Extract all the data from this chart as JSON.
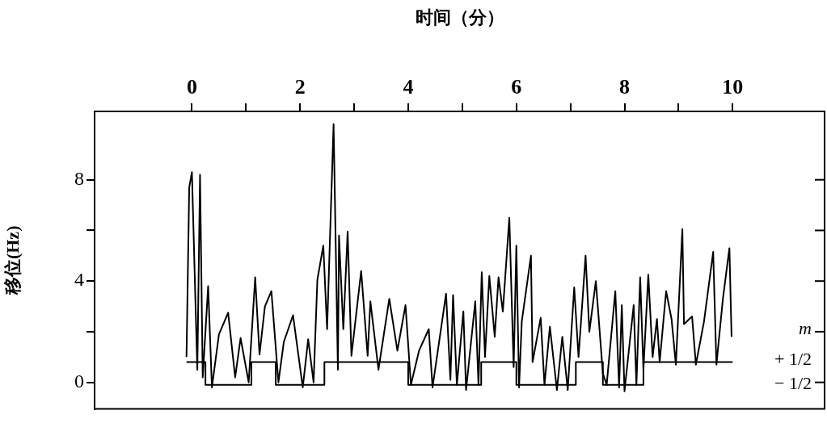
{
  "chart_data": {
    "type": "line",
    "xlabel": "时间（分）",
    "ylabel": "移位(Hz)",
    "xlim": [
      -1.8,
      11.7
    ],
    "xticks": [
      0,
      {
        "value": 1,
        "label": null
      },
      2,
      {
        "value": 3,
        "label": null
      },
      4,
      {
        "value": 5,
        "label": null
      },
      6,
      {
        "value": 7,
        "label": null
      },
      8,
      {
        "value": 9,
        "label": null
      },
      10
    ],
    "ylim": [
      -1.05,
      10.7
    ],
    "yticks": [
      0,
      {
        "value": 2,
        "label": null
      },
      4,
      {
        "value": 6,
        "label": null
      },
      8
    ],
    "grid": false,
    "legend": false,
    "marker": "none",
    "series": [
      {
        "color": "#000000",
        "x": [
          -0.1,
          -0.05,
          0.0,
          0.1,
          0.15,
          0.2,
          0.3,
          0.37,
          0.5,
          0.67,
          0.8,
          0.9,
          1.05,
          1.17,
          1.25,
          1.35,
          1.47,
          1.6,
          1.7,
          1.87,
          2.05,
          2.15,
          2.25,
          2.32,
          2.43,
          2.5,
          2.62,
          2.7,
          2.72,
          2.8,
          2.88,
          2.95,
          3.13,
          3.25,
          3.3,
          3.45,
          3.65,
          3.8,
          3.95,
          4.05,
          4.2,
          4.38,
          4.45,
          4.7,
          4.78,
          4.83,
          4.9,
          5.02,
          5.07,
          5.24,
          5.3,
          5.36,
          5.42,
          5.5,
          5.6,
          5.67,
          5.75,
          5.87,
          5.95,
          6.0,
          6.05,
          6.1,
          6.27,
          6.3,
          6.45,
          6.52,
          6.62,
          6.75,
          6.85,
          6.95,
          7.07,
          7.15,
          7.28,
          7.35,
          7.47,
          7.6,
          7.67,
          7.83,
          7.9,
          7.95,
          8.0,
          8.17,
          8.22,
          8.29,
          8.35,
          8.44,
          8.52,
          8.6,
          8.65,
          8.77,
          8.87,
          8.95,
          9.07,
          9.1,
          9.25,
          9.32,
          9.47,
          9.64,
          9.7,
          9.82,
          9.94,
          9.98
        ],
        "values": [
          1.0,
          7.7,
          8.3,
          0.5,
          8.2,
          0.2,
          3.8,
          -0.2,
          1.9,
          2.75,
          0.2,
          1.75,
          0.0,
          4.15,
          1.1,
          3.0,
          3.6,
          0.0,
          1.6,
          2.65,
          -0.2,
          1.7,
          0.0,
          4.05,
          5.4,
          2.1,
          10.2,
          0.5,
          5.8,
          2.1,
          5.95,
          1.05,
          4.4,
          1.05,
          3.2,
          0.5,
          3.3,
          1.25,
          3.05,
          -0.1,
          1.25,
          2.1,
          -0.2,
          3.5,
          0.1,
          3.45,
          -0.1,
          2.8,
          -0.3,
          3.2,
          -0.1,
          4.35,
          1.0,
          4.2,
          1.8,
          4.15,
          2.8,
          6.5,
          0.6,
          5.4,
          -0.2,
          2.4,
          5.0,
          0.8,
          2.55,
          -0.1,
          2.2,
          -0.3,
          1.8,
          -0.3,
          3.75,
          1.0,
          5.0,
          2.0,
          4.0,
          0.35,
          -0.1,
          3.6,
          -0.2,
          3.05,
          -0.35,
          3.05,
          -0.1,
          4.15,
          0.5,
          4.25,
          1.0,
          2.5,
          0.8,
          3.6,
          2.5,
          0.7,
          6.05,
          2.3,
          2.6,
          0.7,
          2.4,
          5.15,
          0.7,
          3.3,
          5.3,
          1.8
        ]
      },
      {
        "type": "step",
        "color": "#000000",
        "x": [
          -0.1,
          0.25,
          1.1,
          1.55,
          2.45,
          4.0,
          5.35,
          6.0,
          7.1,
          7.6,
          8.35,
          10.0
        ],
        "values": [
          0.8,
          -0.1,
          0.8,
          -0.1,
          0.8,
          -0.1,
          0.8,
          -0.1,
          0.8,
          -0.1,
          0.8,
          0.8
        ]
      }
    ],
    "annotations": [
      "m",
      "+ 1/2",
      "− 1/2"
    ]
  }
}
